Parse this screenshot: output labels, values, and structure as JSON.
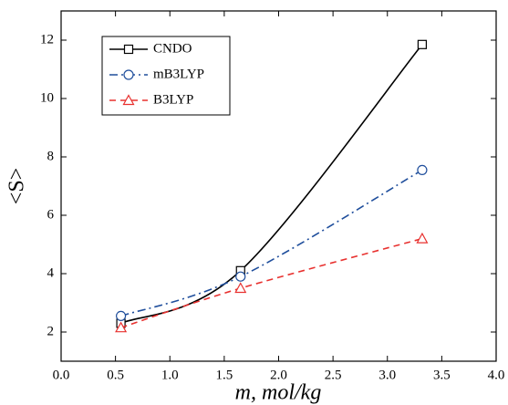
{
  "chart_data": {
    "type": "line",
    "x_label": "m, mol/kg",
    "y_label": "<S>",
    "x": [
      0.55,
      1.65,
      3.32
    ],
    "series": [
      {
        "name": "CNDO",
        "color": "#000000",
        "dash": "solid",
        "marker": "square",
        "values": [
          2.3,
          4.1,
          11.85
        ]
      },
      {
        "name": "mB3LYP",
        "color": "#1f4e9c",
        "dash": "dashdot",
        "marker": "circle",
        "values": [
          2.55,
          3.9,
          7.55
        ]
      },
      {
        "name": "B3LYP",
        "color": "#e8312f",
        "dash": "dashed",
        "marker": "triangle",
        "values": [
          2.15,
          3.5,
          5.2
        ]
      }
    ],
    "xlim": [
      0,
      4
    ],
    "ylim": [
      1,
      13
    ],
    "xticks": [
      {
        "value": 0,
        "label": "0.0"
      },
      {
        "value": 0.5,
        "label": "0.5"
      },
      {
        "value": 1,
        "label": "1.0"
      },
      {
        "value": 1.5,
        "label": "1.5"
      },
      {
        "value": 2,
        "label": "2.0"
      },
      {
        "value": 2.5,
        "label": "2.5"
      },
      {
        "value": 3,
        "label": "3.0"
      },
      {
        "value": 3.5,
        "label": "3.5"
      },
      {
        "value": 4,
        "label": "4.0"
      }
    ],
    "yticks": [
      2,
      4,
      6,
      8,
      10,
      12
    ],
    "legend": "upper-left",
    "grid": false
  }
}
